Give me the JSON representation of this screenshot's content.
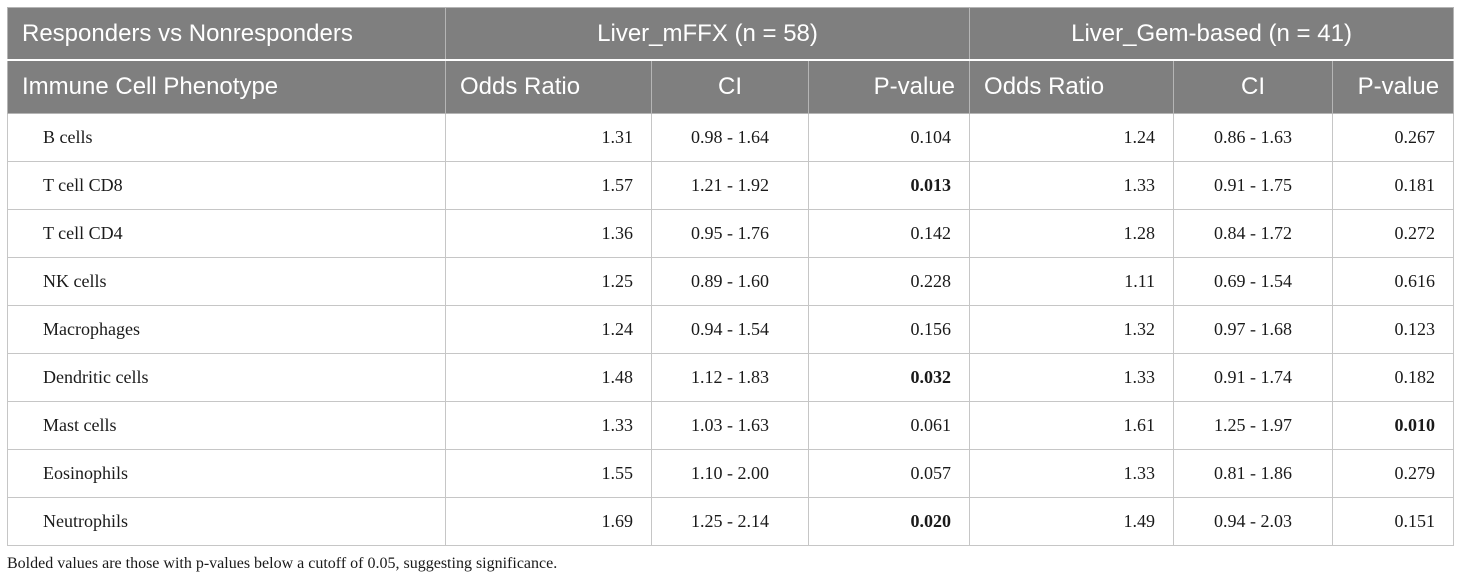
{
  "header": {
    "row1": {
      "comparison": "Responders vs Nonresponders",
      "group1": "Liver_mFFX (n = 58)",
      "group2": "Liver_Gem-based (n = 41)"
    },
    "row2": {
      "phenotype": "Immune Cell Phenotype",
      "g1_or": "Odds Ratio",
      "g1_ci": "CI",
      "g1_p": "P-value",
      "g2_or": "Odds Ratio",
      "g2_ci": "CI",
      "g2_p": "P-value"
    }
  },
  "rows": [
    {
      "name": "B cells",
      "g1_or": "1.31",
      "g1_ci": "0.98 - 1.64",
      "g1_p": "0.104",
      "g1_bold": false,
      "g2_or": "1.24",
      "g2_ci": "0.86 - 1.63",
      "g2_p": "0.267",
      "g2_bold": false
    },
    {
      "name": "T cell CD8",
      "g1_or": "1.57",
      "g1_ci": "1.21 - 1.92",
      "g1_p": "0.013",
      "g1_bold": true,
      "g2_or": "1.33",
      "g2_ci": "0.91 - 1.75",
      "g2_p": "0.181",
      "g2_bold": false
    },
    {
      "name": "T cell CD4",
      "g1_or": "1.36",
      "g1_ci": "0.95 - 1.76",
      "g1_p": "0.142",
      "g1_bold": false,
      "g2_or": "1.28",
      "g2_ci": "0.84 - 1.72",
      "g2_p": "0.272",
      "g2_bold": false
    },
    {
      "name": "NK cells",
      "g1_or": "1.25",
      "g1_ci": "0.89 - 1.60",
      "g1_p": "0.228",
      "g1_bold": false,
      "g2_or": "1.11",
      "g2_ci": "0.69 - 1.54",
      "g2_p": "0.616",
      "g2_bold": false
    },
    {
      "name": "Macrophages",
      "g1_or": "1.24",
      "g1_ci": "0.94 - 1.54",
      "g1_p": "0.156",
      "g1_bold": false,
      "g2_or": "1.32",
      "g2_ci": "0.97 - 1.68",
      "g2_p": "0.123",
      "g2_bold": false
    },
    {
      "name": "Dendritic cells",
      "g1_or": "1.48",
      "g1_ci": "1.12 - 1.83",
      "g1_p": "0.032",
      "g1_bold": true,
      "g2_or": "1.33",
      "g2_ci": "0.91 - 1.74",
      "g2_p": "0.182",
      "g2_bold": false
    },
    {
      "name": "Mast cells",
      "g1_or": "1.33",
      "g1_ci": "1.03 - 1.63",
      "g1_p": "0.061",
      "g1_bold": false,
      "g2_or": "1.61",
      "g2_ci": "1.25 - 1.97",
      "g2_p": "0.010",
      "g2_bold": true
    },
    {
      "name": "Eosinophils",
      "g1_or": "1.55",
      "g1_ci": "1.10 - 2.00",
      "g1_p": "0.057",
      "g1_bold": false,
      "g2_or": "1.33",
      "g2_ci": "0.81 - 1.86",
      "g2_p": "0.279",
      "g2_bold": false
    },
    {
      "name": "Neutrophils",
      "g1_or": "1.69",
      "g1_ci": "1.25 - 2.14",
      "g1_p": "0.020",
      "g1_bold": true,
      "g2_or": "1.49",
      "g2_ci": "0.94 - 2.03",
      "g2_p": "0.151",
      "g2_bold": false
    }
  ],
  "footnote": "Bolded values are those with p-values below a cutoff of 0.05, suggesting significance."
}
